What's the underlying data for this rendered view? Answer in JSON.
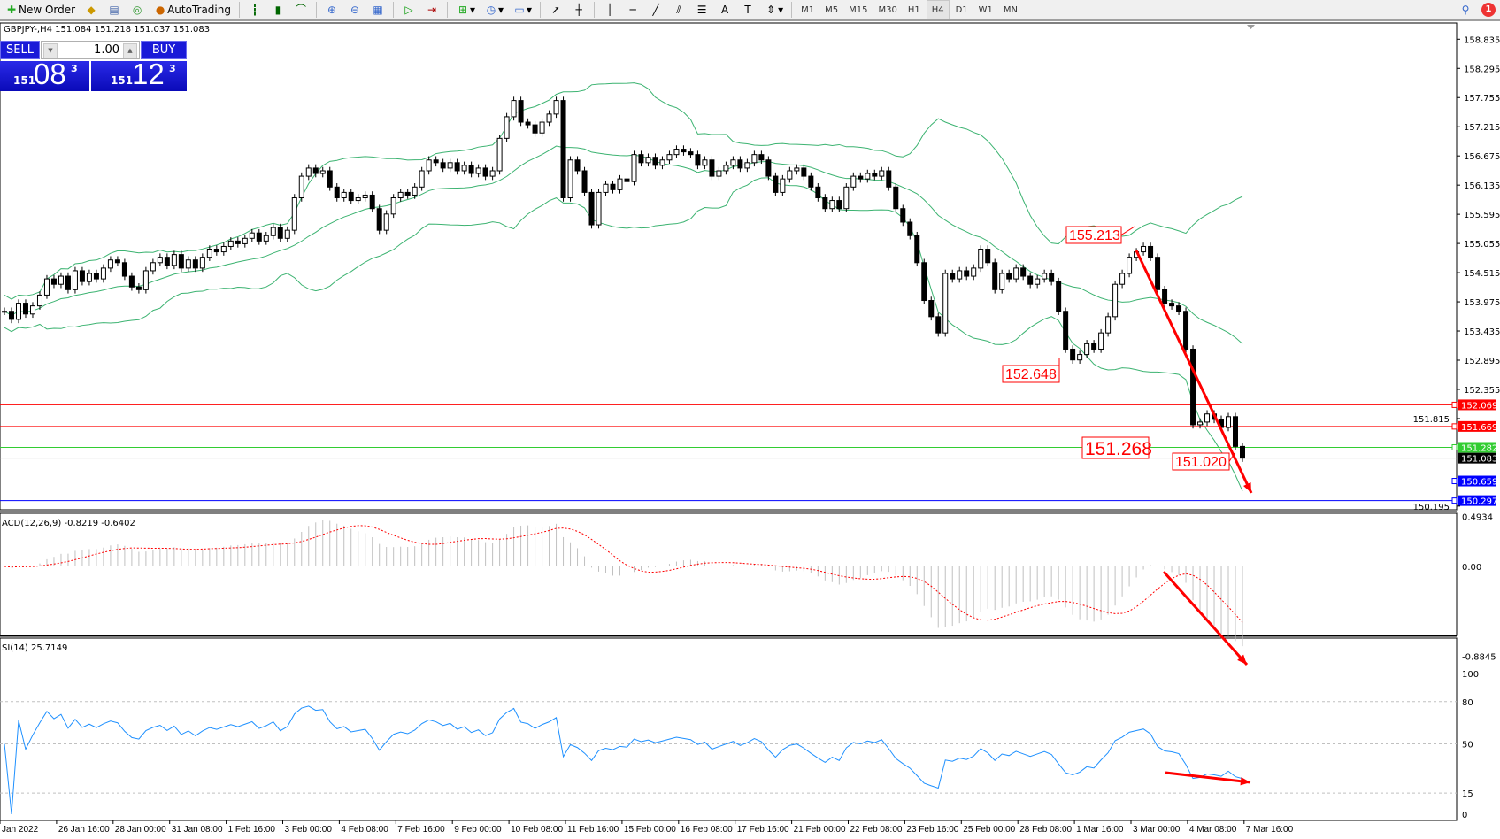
{
  "toolbar": {
    "new_order_label": "New Order",
    "autotrading_label": "AutoTrading",
    "icons": [
      "new-order-icon",
      "history-icon",
      "data-window-icon",
      "signals-icon",
      "autotrading-icon",
      "bar-chart-icon",
      "candlestick-icon",
      "line-chart-icon",
      "zoom-in-icon",
      "zoom-out-icon",
      "tile-windows-icon",
      "autoscroll-icon",
      "chart-shift-icon",
      "indicators-icon",
      "periods-icon",
      "templates-icon",
      "cursor-icon",
      "crosshair-icon",
      "vertical-line-icon",
      "horizontal-line-icon",
      "trendline-icon",
      "equidistant-channel-icon",
      "fibonacci-icon",
      "text-icon",
      "text-label-icon",
      "arrows-icon",
      "search-icon",
      "notifications-icon"
    ],
    "timeframes": [
      "M1",
      "M5",
      "M15",
      "M30",
      "H1",
      "H4",
      "D1",
      "W1",
      "MN"
    ],
    "active_timeframe": "H4",
    "notification_count": "1"
  },
  "symbol_info": "GBPJPY-,H4  151.084 151.218 151.037 151.083",
  "one_click": {
    "sell_label": "SELL",
    "buy_label": "BUY",
    "lot": "1.00",
    "sell_price": {
      "prefix": "151",
      "big": "08",
      "sup": "3"
    },
    "buy_price": {
      "prefix": "151",
      "big": "12",
      "sup": "3"
    }
  },
  "chart_data": {
    "type": "candlestick",
    "symbol": "GBPJPY-",
    "timeframe": "H4",
    "close": [
      153.8,
      153.65,
      153.95,
      153.75,
      153.9,
      154.1,
      154.4,
      154.3,
      154.45,
      154.2,
      154.55,
      154.35,
      154.5,
      154.4,
      154.6,
      154.75,
      154.7,
      154.45,
      154.25,
      154.2,
      154.55,
      154.7,
      154.8,
      154.65,
      154.85,
      154.6,
      154.75,
      154.6,
      154.8,
      154.95,
      154.9,
      155.0,
      155.1,
      155.05,
      155.15,
      155.25,
      155.1,
      155.2,
      155.35,
      155.15,
      155.3,
      155.9,
      156.3,
      156.45,
      156.35,
      156.4,
      156.1,
      155.9,
      156.0,
      155.85,
      155.9,
      155.95,
      155.7,
      155.3,
      155.6,
      155.9,
      156.0,
      155.95,
      156.1,
      156.4,
      156.6,
      156.55,
      156.45,
      156.55,
      156.4,
      156.5,
      156.35,
      156.45,
      156.3,
      156.4,
      157.0,
      157.4,
      157.7,
      157.3,
      157.25,
      157.1,
      157.3,
      157.45,
      157.7,
      155.9,
      156.6,
      156.4,
      156.0,
      155.4,
      156.0,
      156.15,
      156.05,
      156.25,
      156.2,
      156.7,
      156.55,
      156.65,
      156.5,
      156.6,
      156.7,
      156.8,
      156.75,
      156.7,
      156.5,
      156.6,
      156.3,
      156.4,
      156.5,
      156.6,
      156.45,
      156.55,
      156.7,
      156.6,
      156.3,
      156.0,
      156.25,
      156.4,
      156.45,
      156.3,
      156.1,
      155.9,
      155.7,
      155.85,
      155.7,
      156.1,
      156.3,
      156.25,
      156.35,
      156.3,
      156.4,
      156.1,
      155.7,
      155.45,
      155.2,
      154.7,
      154.0,
      153.7,
      153.4,
      154.5,
      154.4,
      154.55,
      154.45,
      154.6,
      154.95,
      154.7,
      154.2,
      154.5,
      154.4,
      154.6,
      154.45,
      154.3,
      154.4,
      154.5,
      154.35,
      153.8,
      153.1,
      152.9,
      153.0,
      153.2,
      153.1,
      153.4,
      153.7,
      154.3,
      154.5,
      154.8,
      154.9,
      155.0,
      154.8,
      154.2,
      153.95,
      153.9,
      153.8,
      153.1,
      151.7,
      151.75,
      151.9,
      151.8,
      151.65,
      151.85,
      151.3,
      151.083
    ],
    "price_ticks": [
      "158.835",
      "158.295",
      "157.755",
      "157.215",
      "156.675",
      "156.135",
      "155.595",
      "155.055",
      "154.515",
      "153.975",
      "153.435",
      "152.895",
      "152.355",
      "151.815",
      "150.195"
    ],
    "price_range": [
      150.195,
      158.835
    ],
    "time_labels": [
      "Jan 2022",
      "26 Jan 16:00",
      "28 Jan 00:00",
      "31 Jan 08:00",
      "1 Feb 16:00",
      "3 Feb 00:00",
      "4 Feb 08:00",
      "7 Feb 16:00",
      "9 Feb 00:00",
      "10 Feb 08:00",
      "11 Feb 16:00",
      "15 Feb 00:00",
      "16 Feb 08:00",
      "17 Feb 16:00",
      "21 Feb 00:00",
      "22 Feb 08:00",
      "23 Feb 16:00",
      "25 Feb 00:00",
      "28 Feb 08:00",
      "1 Mar 16:00",
      "3 Mar 00:00",
      "4 Mar 08:00",
      "7 Mar 16:00"
    ],
    "bollinger": {
      "period": 20,
      "deviation": 2,
      "color": "#3cb371"
    },
    "horizontal_lines": [
      {
        "price": 152.069,
        "label": "152.069",
        "color": "#ff0000"
      },
      {
        "price": 151.669,
        "label": "151.669",
        "color": "#ff0000"
      },
      {
        "price": 151.282,
        "label": "151.282",
        "color": "#32cd32"
      },
      {
        "price": 151.083,
        "label": "151.083",
        "color": "#c0c0c0",
        "tag_color": "#000000"
      },
      {
        "price": 150.659,
        "label": "150.659",
        "color": "#0000ff"
      },
      {
        "price": 150.297,
        "label": "150.297",
        "color": "#0000ff"
      }
    ],
    "price_annotations": [
      "155.213",
      "152.648",
      "151.268",
      "151.020"
    ],
    "annotation_color": "#ff0000",
    "macd": {
      "label": "ACD(12,26,9) -0.8219 -0.6402",
      "fast": 12,
      "slow": 26,
      "signal": 9,
      "ticks": [
        "0.4934",
        "0.00",
        "-0.8845"
      ],
      "range": [
        -0.8845,
        0.4934
      ],
      "histogram_color": "#c0c0c0",
      "signal_color": "#ff0000"
    },
    "rsi": {
      "label": "SI(14) 25.7149",
      "period": 14,
      "ticks": [
        "100",
        "80",
        "50",
        "15",
        "0"
      ],
      "levels": [
        80,
        50,
        15
      ],
      "color": "#1e90ff"
    }
  }
}
